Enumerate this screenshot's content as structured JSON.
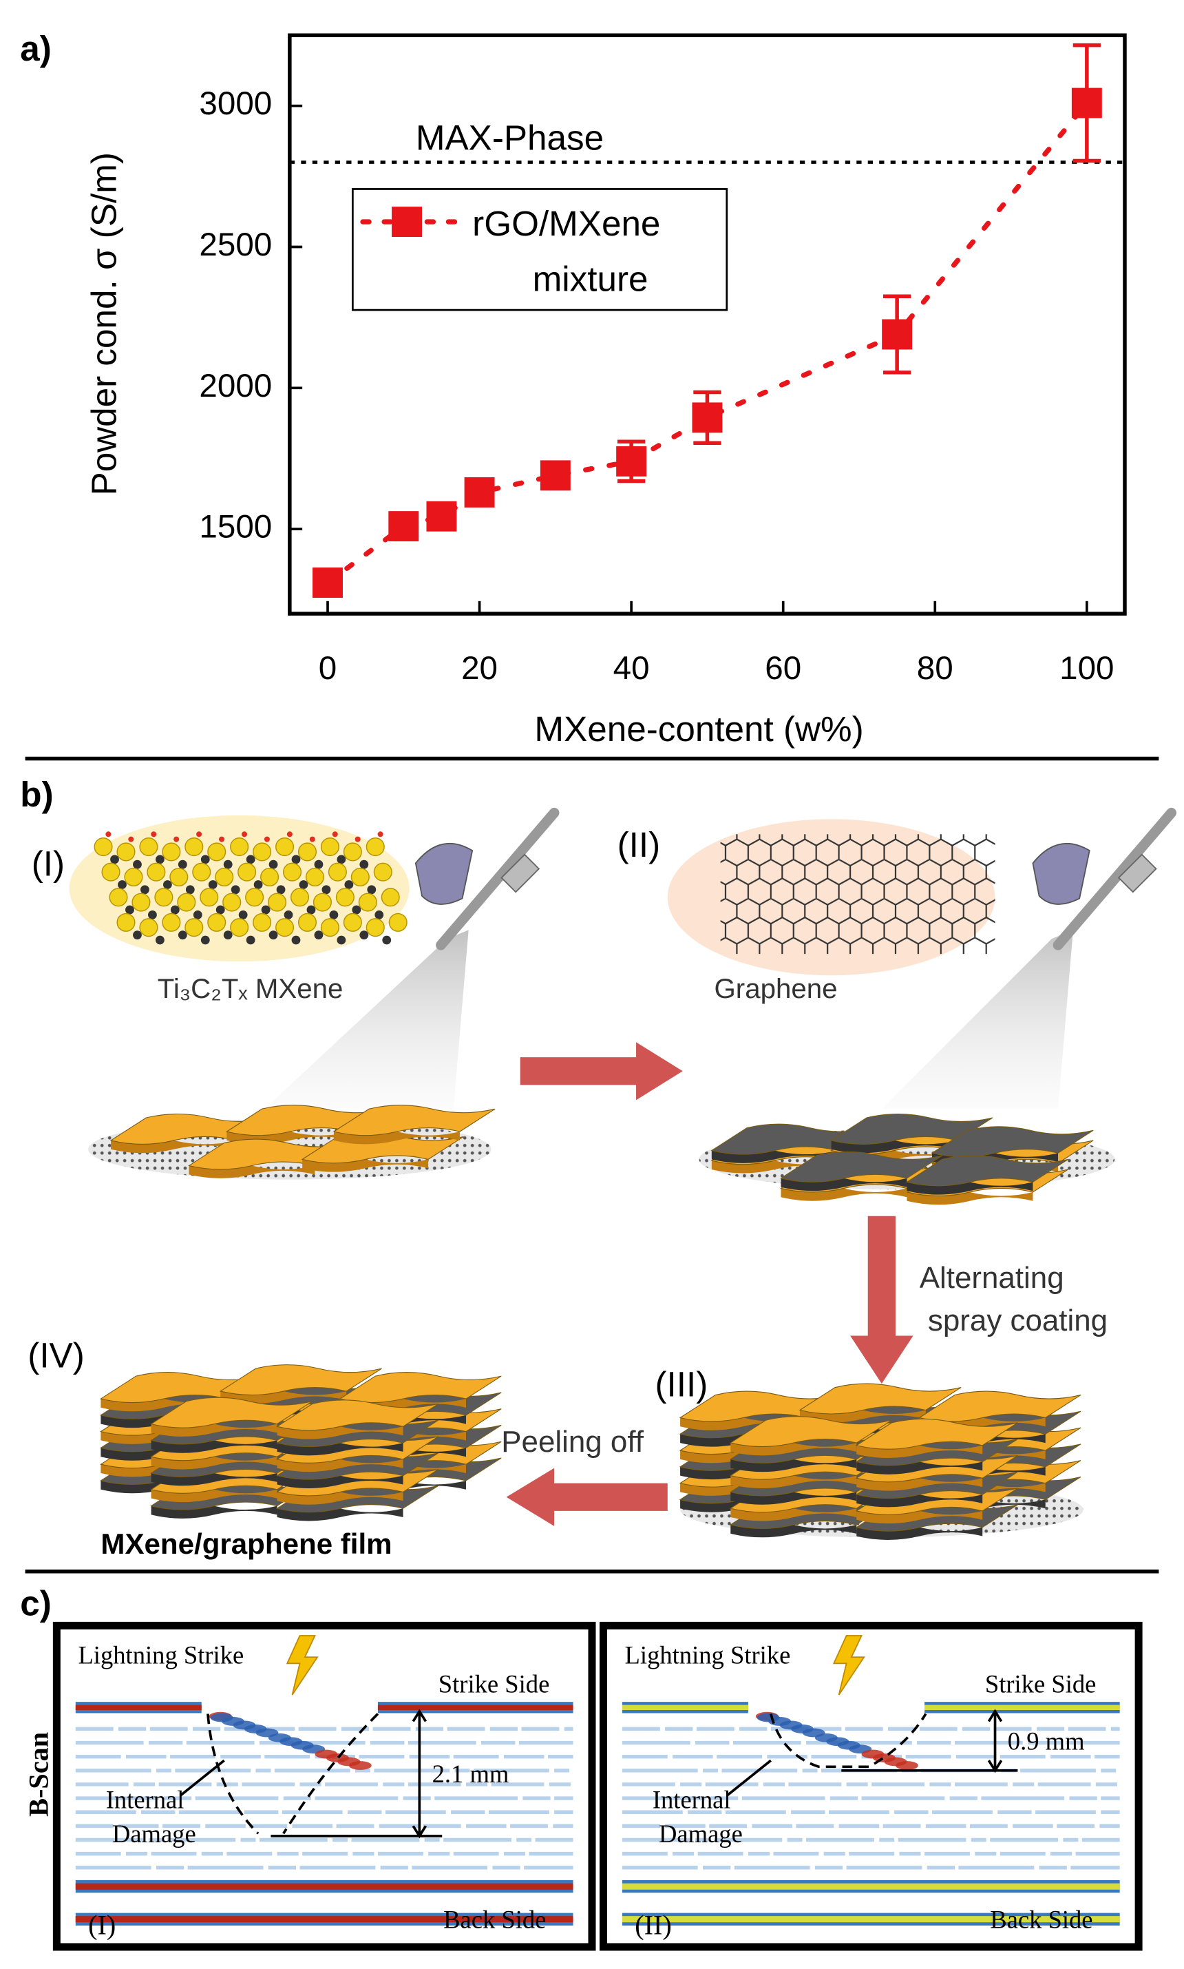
{
  "chart_data": {
    "type": "scatter",
    "panel_label": "a)",
    "xlabel": "MXene-content (w%)",
    "ylabel": "Powder cond. σ (S/m)",
    "x": [
      0,
      10,
      15,
      20,
      30,
      40,
      50,
      75,
      100
    ],
    "series": [
      {
        "name": "rGO/MXene mixture",
        "color": "#e8151b",
        "values": [
          1310,
          1510,
          1545,
          1630,
          1690,
          1740,
          1895,
          2190,
          3010
        ],
        "errors": [
          40,
          40,
          35,
          30,
          30,
          70,
          90,
          135,
          205
        ]
      }
    ],
    "xlim": [
      -5,
      105
    ],
    "ylim": [
      1200,
      3250
    ],
    "xticks": [
      0,
      20,
      40,
      60,
      80,
      100
    ],
    "yticks": [
      1500,
      2000,
      2500,
      3000
    ],
    "reference_lines": [
      {
        "label": "MAX-Phase",
        "value": 2800
      }
    ]
  },
  "panel_b": {
    "label": "b)",
    "steps": [
      "(I)",
      "(II)",
      "(III)",
      "(IV)"
    ],
    "mxene_label": "Ti₃C₂Tₓ MXene",
    "graphene_label": "Graphene",
    "spray_label": "Alternating spray coating",
    "peel_label": "Peeling off",
    "film_label": "MXene/graphene film"
  },
  "panel_c": {
    "label": "c)",
    "row_label": "B-Scan",
    "scans": [
      {
        "tag": "(I)",
        "strike": "Lightning Strike",
        "strike_side": "Strike Side",
        "damage": "Internal Damage",
        "depth": "2.1 mm",
        "back_side": "Back Side"
      },
      {
        "tag": "(II)",
        "strike": "Lightning Strike",
        "strike_side": "Strike Side",
        "damage": "Internal Damage",
        "depth": "0.9 mm",
        "back_side": "Back Side"
      }
    ]
  }
}
